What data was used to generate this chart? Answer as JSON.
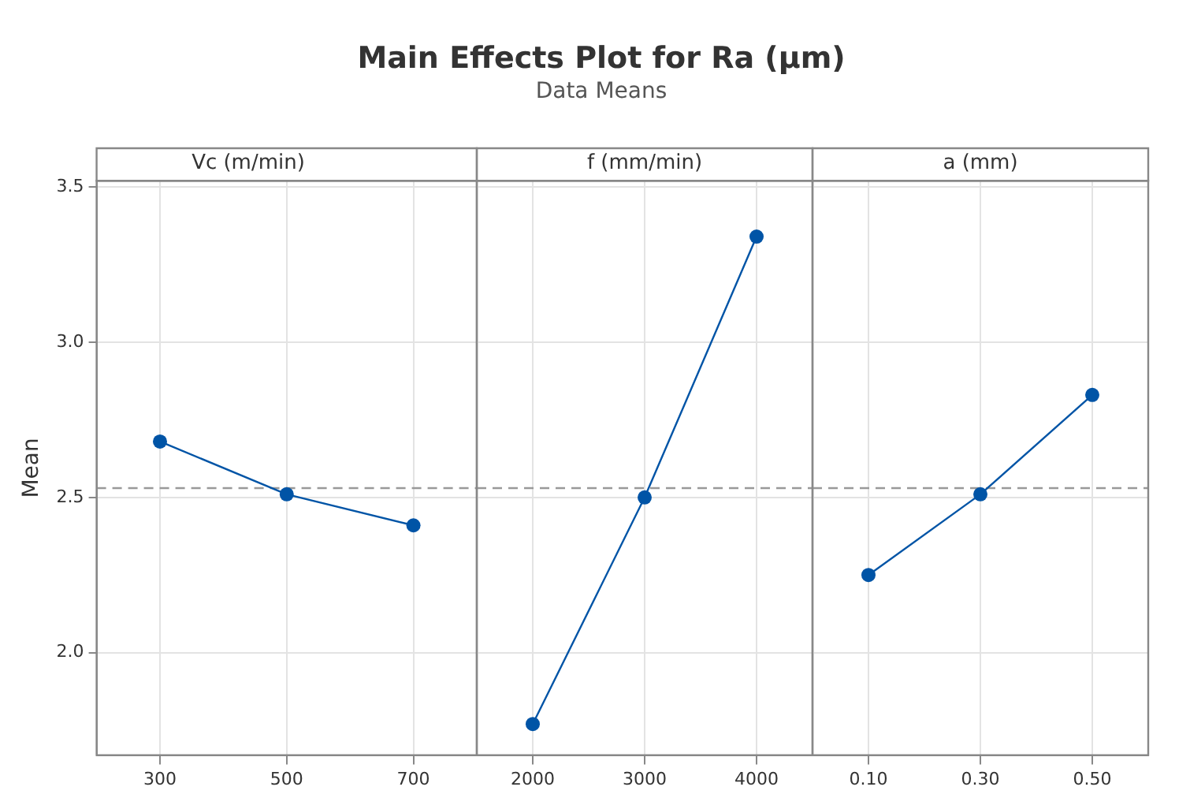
{
  "chart_data": [
    {
      "type": "other",
      "title": "Main Effects Plot for Ra (µm)",
      "subtitle": "Data Means"
    },
    {
      "type": "line",
      "title": "Vc (m/min)",
      "ylabel": "Mean",
      "categories": [
        "300",
        "500",
        "700"
      ],
      "series": [
        {
          "color": "#0054a6",
          "values": [
            2.68,
            2.51,
            2.41
          ]
        }
      ],
      "ylim": [
        1.67,
        3.52
      ],
      "yticks": [
        {
          "value": 2,
          "label": "2.0"
        },
        {
          "value": 2.5,
          "label": "2.5"
        },
        {
          "value": 3,
          "label": "3.0"
        },
        {
          "value": 3.5,
          "label": "3.5"
        }
      ],
      "ref_lines": [
        {
          "axis": "y",
          "value": 2.53,
          "color": "#999999",
          "line_style": "dashed"
        }
      ],
      "grid": true,
      "marker": "circle"
    },
    {
      "type": "line",
      "title": "f (mm/min)",
      "categories": [
        "2000",
        "3000",
        "4000"
      ],
      "series": [
        {
          "color": "#0054a6",
          "values": [
            1.77,
            2.5,
            3.34
          ]
        }
      ],
      "ylim": [
        1.67,
        3.52
      ],
      "yticks": [
        {
          "value": 2,
          "label": null
        },
        {
          "value": 2.5,
          "label": null
        },
        {
          "value": 3,
          "label": null
        },
        {
          "value": 3.5,
          "label": null
        }
      ],
      "ref_lines": [
        {
          "axis": "y",
          "value": 2.53,
          "color": "#999999",
          "line_style": "dashed"
        }
      ],
      "grid": true,
      "marker": "circle",
      "tick_labels": "x"
    },
    {
      "type": "line",
      "title": "a (mm)",
      "categories": [
        "0.10",
        "0.30",
        "0.50"
      ],
      "series": [
        {
          "color": "#0054a6",
          "values": [
            2.25,
            2.51,
            2.83
          ]
        }
      ],
      "ylim": [
        1.67,
        3.52
      ],
      "yticks": [
        {
          "value": 2,
          "label": null
        },
        {
          "value": 2.5,
          "label": null
        },
        {
          "value": 3,
          "label": null
        },
        {
          "value": 3.5,
          "label": null
        }
      ],
      "ref_lines": [
        {
          "axis": "y",
          "value": 2.53,
          "color": "#999999",
          "line_style": "dashed"
        }
      ],
      "grid": true,
      "marker": "circle",
      "tick_labels": "x"
    }
  ]
}
